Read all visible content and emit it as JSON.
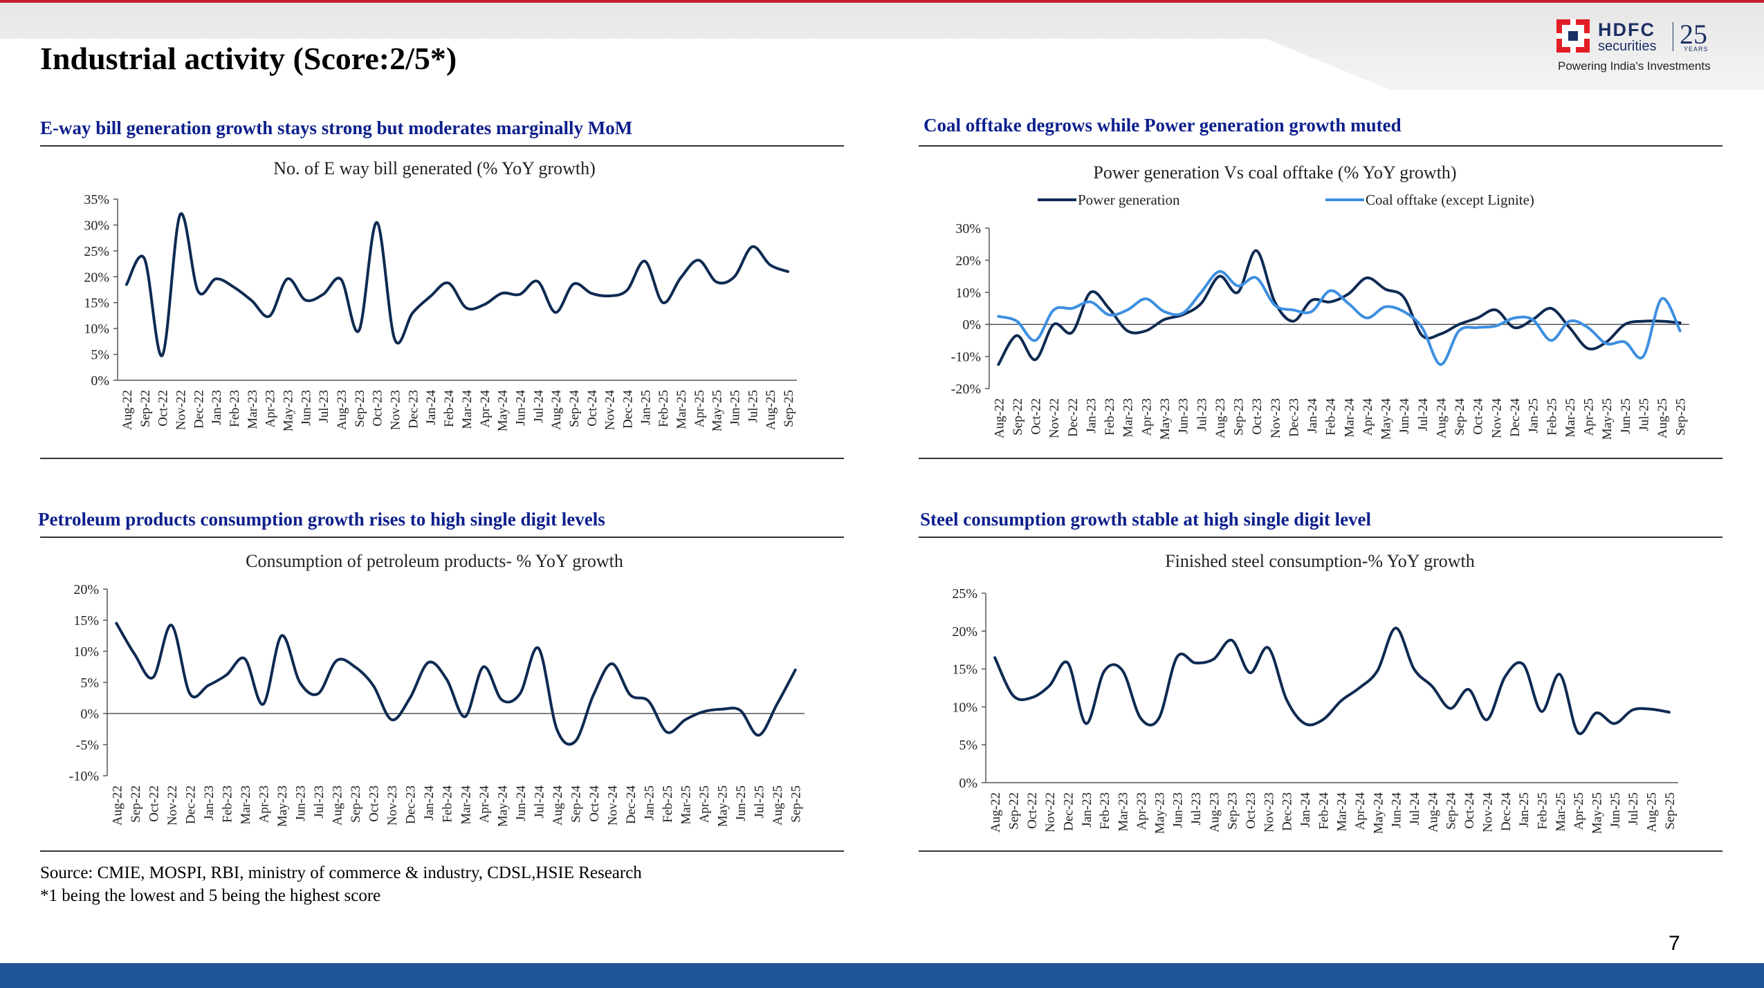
{
  "page": {
    "title": "Industrial activity (Score:2/5*)",
    "number": "7",
    "source_line1": "Source: CMIE, MOSPI, RBI, ministry of commerce & industry, CDSL,HSIE Research",
    "source_line2": "*1 being the lowest and 5 being the highest score"
  },
  "logo": {
    "brand": "HDFC",
    "sub": "securities",
    "anniversary": "25",
    "years": "YEARS",
    "tagline": "Powering India's Investments"
  },
  "sections": {
    "eway": "E-way bill generation growth stays strong but moderates marginally MoM",
    "coal": "Coal offtake degrows while Power generation growth muted",
    "petroleum": "Petroleum products consumption growth rises to high single digit levels",
    "steel": "Steel consumption growth stable at high single digit level"
  },
  "colors": {
    "dark_series": "#0e2a52",
    "light_series": "#3d8fe0",
    "heading": "#0d1f8c",
    "top_accent": "#c8202f",
    "bottom_bar": "#1f5596"
  },
  "chart_data": [
    {
      "id": "eway",
      "type": "line",
      "title": "No. of E way bill generated (% YoY growth)",
      "categories": [
        "Aug-22",
        "Sep-22",
        "Oct-22",
        "Nov-22",
        "Dec-22",
        "Jan-23",
        "Feb-23",
        "Mar-23",
        "Apr-23",
        "May-23",
        "Jun-23",
        "Jul-23",
        "Aug-23",
        "Sep-23",
        "Oct-23",
        "Nov-23",
        "Dec-23",
        "Jan-24",
        "Feb-24",
        "Mar-24",
        "Apr-24",
        "May-24",
        "Jun-24",
        "Jul-24",
        "Aug-24",
        "Sep-24",
        "Oct-24",
        "Nov-24",
        "Dec-24",
        "Jan-25",
        "Feb-25",
        "Mar-25",
        "Apr-25",
        "May-25",
        "Jun-25",
        "Jul-25",
        "Aug-25",
        "Sep-25"
      ],
      "yticks": [
        "35%",
        "30%",
        "25%",
        "20%",
        "15%",
        "10%",
        "5%",
        "0%"
      ],
      "ylim": [
        0,
        35
      ],
      "series": [
        {
          "values": [
            18.5,
            23.5,
            4.8,
            32,
            17.2,
            19.6,
            18,
            15.4,
            12.4,
            19.6,
            15.5,
            16.6,
            19.5,
            9.6,
            30.5,
            7.9,
            13,
            16.2,
            18.8,
            14,
            14.6,
            16.8,
            16.6,
            19.1,
            13.1,
            18.6,
            16.8,
            16.3,
            17.4,
            23,
            15,
            19.8,
            23.2,
            19,
            20,
            25.8,
            22.3,
            21
          ]
        }
      ]
    },
    {
      "id": "coal",
      "type": "line",
      "title": "Power generation Vs coal offtake (% YoY growth)",
      "categories": [
        "Aug-22",
        "Sep-22",
        "Oct-22",
        "Nov-22",
        "Dec-22",
        "Jan-23",
        "Feb-23",
        "Mar-23",
        "Apr-23",
        "May-23",
        "Jun-23",
        "Jul-23",
        "Aug-23",
        "Sep-23",
        "Oct-23",
        "Nov-23",
        "Dec-23",
        "Jan-24",
        "Feb-24",
        "Mar-24",
        "Apr-24",
        "May-24",
        "Jun-24",
        "Jul-24",
        "Aug-24",
        "Sep-24",
        "Oct-24",
        "Nov-24",
        "Dec-24",
        "Jan-25",
        "Feb-25",
        "Mar-25",
        "Apr-25",
        "May-25",
        "Jun-25",
        "Jul-25",
        "Aug-25",
        "Sep-25"
      ],
      "yticks": [
        "30%",
        "20%",
        "10%",
        "0%",
        "-10%",
        "-20%"
      ],
      "ylim": [
        -20,
        30
      ],
      "series": [
        {
          "name": "Power generation",
          "values": [
            -12.5,
            -3.5,
            -11,
            0,
            -2.5,
            10,
            5,
            -2,
            -2,
            1.5,
            3,
            6.5,
            15,
            10,
            23,
            7,
            1,
            7.5,
            7,
            9.5,
            14.5,
            11,
            8.5,
            -3.5,
            -3,
            0,
            2,
            4.5,
            -1,
            1.5,
            5,
            -1,
            -7.5,
            -5.5,
            0,
            1,
            1,
            0.5
          ]
        },
        {
          "name": "Coal offtake (except Lignite)",
          "values": [
            2.5,
            1,
            -5,
            4.5,
            5,
            7,
            3,
            4.5,
            8,
            4,
            3.5,
            10,
            16.5,
            12,
            14.5,
            6,
            4.5,
            4,
            10.5,
            6.5,
            2,
            5.5,
            4,
            -1,
            -12.5,
            -2,
            -1,
            -0.5,
            2,
            1.5,
            -5,
            1,
            -1,
            -6,
            -5.5,
            -10,
            8,
            -2
          ]
        }
      ]
    },
    {
      "id": "petroleum",
      "type": "line",
      "title": "Consumption of petroleum products- % YoY growth",
      "categories": [
        "Aug-22",
        "Sep-22",
        "Oct-22",
        "Nov-22",
        "Dec-22",
        "Jan-23",
        "Feb-23",
        "Mar-23",
        "Apr-23",
        "May-23",
        "Jun-23",
        "Jul-23",
        "Aug-23",
        "Sep-23",
        "Oct-23",
        "Nov-23",
        "Dec-23",
        "Jan-24",
        "Feb-24",
        "Mar-24",
        "Apr-24",
        "May-24",
        "Jun-24",
        "Jul-24",
        "Aug-24",
        "Sep-24",
        "Oct-24",
        "Nov-24",
        "Dec-24",
        "Jan-25",
        "Feb-25",
        "Mar-25",
        "Apr-25",
        "May-25",
        "Jun-25",
        "Jul-25",
        "Aug-25",
        "Sep-25"
      ],
      "yticks": [
        "20%",
        "15%",
        "10%",
        "5%",
        "0%",
        "-5%",
        "-10%"
      ],
      "ylim": [
        -10,
        20
      ],
      "series": [
        {
          "values": [
            14.5,
            9.5,
            5.8,
            14.2,
            3.2,
            4.5,
            6.2,
            8.8,
            1.5,
            12.5,
            5,
            3.2,
            8.5,
            7.5,
            4.5,
            -1,
            2.5,
            8.2,
            5.5,
            -0.5,
            7.5,
            2.2,
            3.2,
            10.5,
            -2.5,
            -4.5,
            3,
            8,
            3,
            2,
            -3,
            -1,
            0.3,
            0.7,
            0.5,
            -3.5,
            1.5,
            7
          ]
        }
      ]
    },
    {
      "id": "steel",
      "type": "line",
      "title": "Finished steel consumption-% YoY growth",
      "categories": [
        "Aug-22",
        "Sep-22",
        "Oct-22",
        "Nov-22",
        "Dec-22",
        "Jan-23",
        "Feb-23",
        "Mar-23",
        "Apr-23",
        "May-23",
        "Jun-23",
        "Jul-23",
        "Aug-23",
        "Sep-23",
        "Oct-23",
        "Nov-23",
        "Dec-23",
        "Jan-24",
        "Feb-24",
        "Mar-24",
        "Apr-24",
        "May-24",
        "Jun-24",
        "Jul-24",
        "Aug-24",
        "Sep-24",
        "Oct-24",
        "Nov-24",
        "Dec-24",
        "Jan-25",
        "Feb-25",
        "Mar-25",
        "Apr-25",
        "May-25",
        "Jun-25",
        "Jul-25",
        "Aug-25",
        "Sep-25"
      ],
      "yticks": [
        "25%",
        "20%",
        "15%",
        "10%",
        "5%",
        "0%"
      ],
      "ylim": [
        0,
        25
      ],
      "series": [
        {
          "values": [
            16.5,
            11.5,
            11.2,
            12.8,
            15.8,
            7.8,
            14.7,
            14.8,
            8.5,
            8.5,
            16.6,
            15.8,
            16.3,
            18.8,
            14.5,
            17.8,
            11,
            7.8,
            8.3,
            10.8,
            12.5,
            14.8,
            20.4,
            15,
            12.7,
            9.8,
            12.3,
            8.3,
            14,
            15.6,
            9.4,
            14.3,
            6.6,
            9.2,
            7.8,
            9.6,
            9.7,
            9.3
          ]
        }
      ]
    }
  ]
}
